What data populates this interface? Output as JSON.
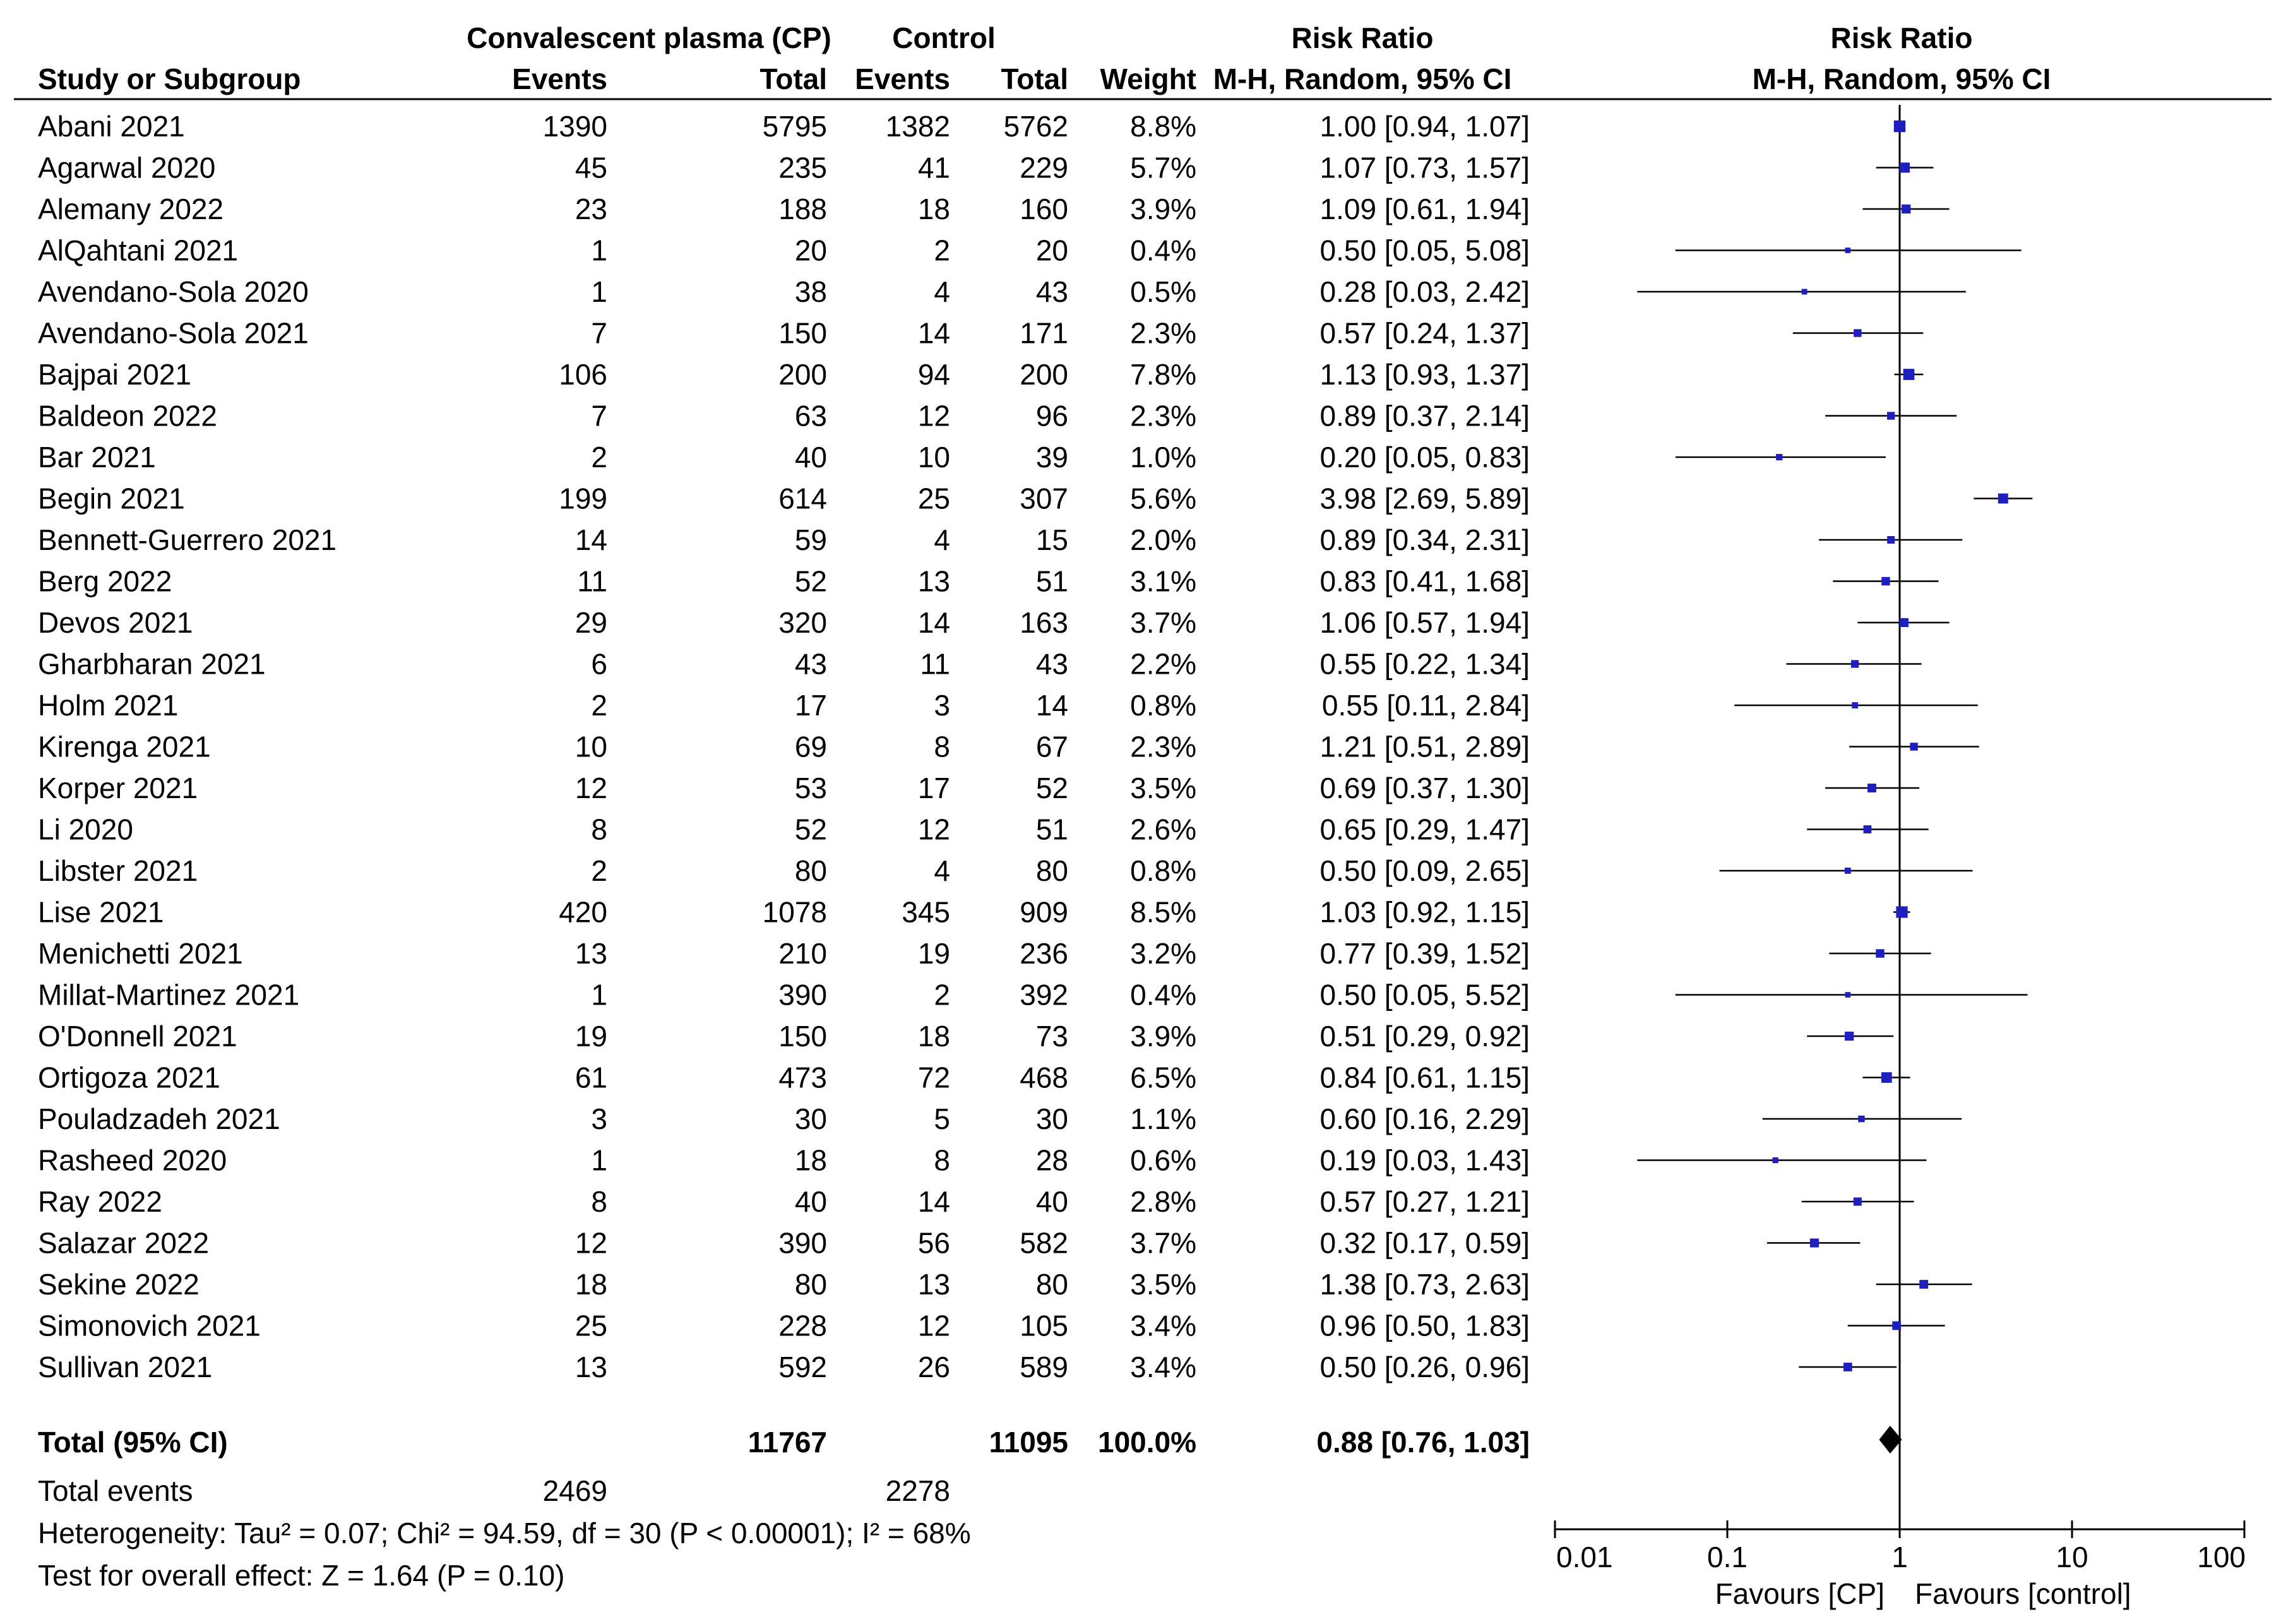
{
  "headers": {
    "group1": "Convalescent plasma (CP)",
    "group2": "Control",
    "rr_top": "Risk Ratio",
    "plot_top": "Risk Ratio",
    "study": "Study or Subgroup",
    "events1": "Events",
    "total1": "Total",
    "events2": "Events",
    "total2": "Total",
    "weight": "Weight",
    "rr_method": "M-H, Random, 95% CI",
    "plot_method": "M-H, Random, 95% CI"
  },
  "studies": [
    {
      "name": "Abani 2021",
      "e1": "1390",
      "n1": "5795",
      "e2": "1382",
      "n2": "5762",
      "w": "8.8%",
      "ci": "1.00 [0.94, 1.07]"
    },
    {
      "name": "Agarwal 2020",
      "e1": "45",
      "n1": "235",
      "e2": "41",
      "n2": "229",
      "w": "5.7%",
      "ci": "1.07 [0.73, 1.57]"
    },
    {
      "name": "Alemany 2022",
      "e1": "23",
      "n1": "188",
      "e2": "18",
      "n2": "160",
      "w": "3.9%",
      "ci": "1.09 [0.61, 1.94]"
    },
    {
      "name": "AlQahtani 2021",
      "e1": "1",
      "n1": "20",
      "e2": "2",
      "n2": "20",
      "w": "0.4%",
      "ci": "0.50 [0.05, 5.08]"
    },
    {
      "name": "Avendano-Sola 2020",
      "e1": "1",
      "n1": "38",
      "e2": "4",
      "n2": "43",
      "w": "0.5%",
      "ci": "0.28 [0.03, 2.42]"
    },
    {
      "name": "Avendano-Sola 2021",
      "e1": "7",
      "n1": "150",
      "e2": "14",
      "n2": "171",
      "w": "2.3%",
      "ci": "0.57 [0.24, 1.37]"
    },
    {
      "name": "Bajpai 2021",
      "e1": "106",
      "n1": "200",
      "e2": "94",
      "n2": "200",
      "w": "7.8%",
      "ci": "1.13 [0.93, 1.37]"
    },
    {
      "name": "Baldeon 2022",
      "e1": "7",
      "n1": "63",
      "e2": "12",
      "n2": "96",
      "w": "2.3%",
      "ci": "0.89 [0.37, 2.14]"
    },
    {
      "name": "Bar 2021",
      "e1": "2",
      "n1": "40",
      "e2": "10",
      "n2": "39",
      "w": "1.0%",
      "ci": "0.20 [0.05, 0.83]"
    },
    {
      "name": "Begin 2021",
      "e1": "199",
      "n1": "614",
      "e2": "25",
      "n2": "307",
      "w": "5.6%",
      "ci": "3.98 [2.69, 5.89]"
    },
    {
      "name": "Bennett-Guerrero 2021",
      "e1": "14",
      "n1": "59",
      "e2": "4",
      "n2": "15",
      "w": "2.0%",
      "ci": "0.89 [0.34, 2.31]"
    },
    {
      "name": "Berg 2022",
      "e1": "11",
      "n1": "52",
      "e2": "13",
      "n2": "51",
      "w": "3.1%",
      "ci": "0.83 [0.41, 1.68]"
    },
    {
      "name": "Devos 2021",
      "e1": "29",
      "n1": "320",
      "e2": "14",
      "n2": "163",
      "w": "3.7%",
      "ci": "1.06 [0.57, 1.94]"
    },
    {
      "name": "Gharbharan 2021",
      "e1": "6",
      "n1": "43",
      "e2": "11",
      "n2": "43",
      "w": "2.2%",
      "ci": "0.55 [0.22, 1.34]"
    },
    {
      "name": "Holm 2021",
      "e1": "2",
      "n1": "17",
      "e2": "3",
      "n2": "14",
      "w": "0.8%",
      "ci": "0.55 [0.11, 2.84]"
    },
    {
      "name": "Kirenga 2021",
      "e1": "10",
      "n1": "69",
      "e2": "8",
      "n2": "67",
      "w": "2.3%",
      "ci": "1.21 [0.51, 2.89]"
    },
    {
      "name": "Korper 2021",
      "e1": "12",
      "n1": "53",
      "e2": "17",
      "n2": "52",
      "w": "3.5%",
      "ci": "0.69 [0.37, 1.30]"
    },
    {
      "name": "Li 2020",
      "e1": "8",
      "n1": "52",
      "e2": "12",
      "n2": "51",
      "w": "2.6%",
      "ci": "0.65 [0.29, 1.47]"
    },
    {
      "name": "Libster 2021",
      "e1": "2",
      "n1": "80",
      "e2": "4",
      "n2": "80",
      "w": "0.8%",
      "ci": "0.50 [0.09, 2.65]"
    },
    {
      "name": "Lise 2021",
      "e1": "420",
      "n1": "1078",
      "e2": "345",
      "n2": "909",
      "w": "8.5%",
      "ci": "1.03 [0.92, 1.15]"
    },
    {
      "name": "Menichetti 2021",
      "e1": "13",
      "n1": "210",
      "e2": "19",
      "n2": "236",
      "w": "3.2%",
      "ci": "0.77 [0.39, 1.52]"
    },
    {
      "name": "Millat-Martinez 2021",
      "e1": "1",
      "n1": "390",
      "e2": "2",
      "n2": "392",
      "w": "0.4%",
      "ci": "0.50 [0.05, 5.52]"
    },
    {
      "name": "O'Donnell 2021",
      "e1": "19",
      "n1": "150",
      "e2": "18",
      "n2": "73",
      "w": "3.9%",
      "ci": "0.51 [0.29, 0.92]"
    },
    {
      "name": "Ortigoza 2021",
      "e1": "61",
      "n1": "473",
      "e2": "72",
      "n2": "468",
      "w": "6.5%",
      "ci": "0.84 [0.61, 1.15]"
    },
    {
      "name": "Pouladzadeh 2021",
      "e1": "3",
      "n1": "30",
      "e2": "5",
      "n2": "30",
      "w": "1.1%",
      "ci": "0.60 [0.16, 2.29]"
    },
    {
      "name": "Rasheed 2020",
      "e1": "1",
      "n1": "18",
      "e2": "8",
      "n2": "28",
      "w": "0.6%",
      "ci": "0.19 [0.03, 1.43]"
    },
    {
      "name": "Ray 2022",
      "e1": "8",
      "n1": "40",
      "e2": "14",
      "n2": "40",
      "w": "2.8%",
      "ci": "0.57 [0.27, 1.21]"
    },
    {
      "name": "Salazar 2022",
      "e1": "12",
      "n1": "390",
      "e2": "56",
      "n2": "582",
      "w": "3.7%",
      "ci": "0.32 [0.17, 0.59]"
    },
    {
      "name": "Sekine 2022",
      "e1": "18",
      "n1": "80",
      "e2": "13",
      "n2": "80",
      "w": "3.5%",
      "ci": "1.38 [0.73, 2.63]"
    },
    {
      "name": "Simonovich 2021",
      "e1": "25",
      "n1": "228",
      "e2": "12",
      "n2": "105",
      "w": "3.4%",
      "ci": "0.96 [0.50, 1.83]"
    },
    {
      "name": "Sullivan 2021",
      "e1": "13",
      "n1": "592",
      "e2": "26",
      "n2": "589",
      "w": "3.4%",
      "ci": "0.50 [0.26, 0.96]"
    }
  ],
  "total": {
    "label": "Total (95% CI)",
    "n1": "11767",
    "n2": "11095",
    "w": "100.0%",
    "ci": "0.88 [0.76, 1.03]"
  },
  "total_events": {
    "label": "Total events",
    "e1": "2469",
    "e2": "2278"
  },
  "heterogeneity": "Heterogeneity: Tau² = 0.07; Chi² = 94.59, df = 30 (P < 0.00001); I² = 68%",
  "overall_effect": "Test for overall effect: Z = 1.64 (P = 0.10)",
  "axis": {
    "scale": "log",
    "range": [
      0.01,
      100
    ],
    "ticks": [
      {
        "value": 0.01,
        "label": "0.01"
      },
      {
        "value": 0.1,
        "label": "0.1"
      },
      {
        "value": 1,
        "label": "1"
      },
      {
        "value": 10,
        "label": "10"
      },
      {
        "value": 100,
        "label": "100"
      }
    ],
    "favours_left": "Favours [CP]",
    "favours_right": "Favours [control]"
  },
  "colors": {
    "square": "#1f1fbf",
    "line": "#000000",
    "diamond": "#000000"
  },
  "chart_data": {
    "type": "forest",
    "x_scale": "log",
    "xlim": [
      0.01,
      100
    ],
    "reference_line": 1,
    "points": [
      {
        "study": "Abani 2021",
        "rr": 1.0,
        "lo": 0.94,
        "hi": 1.07,
        "weight": 8.8
      },
      {
        "study": "Agarwal 2020",
        "rr": 1.07,
        "lo": 0.73,
        "hi": 1.57,
        "weight": 5.7
      },
      {
        "study": "Alemany 2022",
        "rr": 1.09,
        "lo": 0.61,
        "hi": 1.94,
        "weight": 3.9
      },
      {
        "study": "AlQahtani 2021",
        "rr": 0.5,
        "lo": 0.05,
        "hi": 5.08,
        "weight": 0.4
      },
      {
        "study": "Avendano-Sola 2020",
        "rr": 0.28,
        "lo": 0.03,
        "hi": 2.42,
        "weight": 0.5
      },
      {
        "study": "Avendano-Sola 2021",
        "rr": 0.57,
        "lo": 0.24,
        "hi": 1.37,
        "weight": 2.3
      },
      {
        "study": "Bajpai 2021",
        "rr": 1.13,
        "lo": 0.93,
        "hi": 1.37,
        "weight": 7.8
      },
      {
        "study": "Baldeon 2022",
        "rr": 0.89,
        "lo": 0.37,
        "hi": 2.14,
        "weight": 2.3
      },
      {
        "study": "Bar 2021",
        "rr": 0.2,
        "lo": 0.05,
        "hi": 0.83,
        "weight": 1.0
      },
      {
        "study": "Begin 2021",
        "rr": 3.98,
        "lo": 2.69,
        "hi": 5.89,
        "weight": 5.6
      },
      {
        "study": "Bennett-Guerrero 2021",
        "rr": 0.89,
        "lo": 0.34,
        "hi": 2.31,
        "weight": 2.0
      },
      {
        "study": "Berg 2022",
        "rr": 0.83,
        "lo": 0.41,
        "hi": 1.68,
        "weight": 3.1
      },
      {
        "study": "Devos 2021",
        "rr": 1.06,
        "lo": 0.57,
        "hi": 1.94,
        "weight": 3.7
      },
      {
        "study": "Gharbharan 2021",
        "rr": 0.55,
        "lo": 0.22,
        "hi": 1.34,
        "weight": 2.2
      },
      {
        "study": "Holm 2021",
        "rr": 0.55,
        "lo": 0.11,
        "hi": 2.84,
        "weight": 0.8
      },
      {
        "study": "Kirenga 2021",
        "rr": 1.21,
        "lo": 0.51,
        "hi": 2.89,
        "weight": 2.3
      },
      {
        "study": "Korper 2021",
        "rr": 0.69,
        "lo": 0.37,
        "hi": 1.3,
        "weight": 3.5
      },
      {
        "study": "Li 2020",
        "rr": 0.65,
        "lo": 0.29,
        "hi": 1.47,
        "weight": 2.6
      },
      {
        "study": "Libster 2021",
        "rr": 0.5,
        "lo": 0.09,
        "hi": 2.65,
        "weight": 0.8
      },
      {
        "study": "Lise 2021",
        "rr": 1.03,
        "lo": 0.92,
        "hi": 1.15,
        "weight": 8.5
      },
      {
        "study": "Menichetti 2021",
        "rr": 0.77,
        "lo": 0.39,
        "hi": 1.52,
        "weight": 3.2
      },
      {
        "study": "Millat-Martinez 2021",
        "rr": 0.5,
        "lo": 0.05,
        "hi": 5.52,
        "weight": 0.4
      },
      {
        "study": "O'Donnell 2021",
        "rr": 0.51,
        "lo": 0.29,
        "hi": 0.92,
        "weight": 3.9
      },
      {
        "study": "Ortigoza 2021",
        "rr": 0.84,
        "lo": 0.61,
        "hi": 1.15,
        "weight": 6.5
      },
      {
        "study": "Pouladzadeh 2021",
        "rr": 0.6,
        "lo": 0.16,
        "hi": 2.29,
        "weight": 1.1
      },
      {
        "study": "Rasheed 2020",
        "rr": 0.19,
        "lo": 0.03,
        "hi": 1.43,
        "weight": 0.6
      },
      {
        "study": "Ray 2022",
        "rr": 0.57,
        "lo": 0.27,
        "hi": 1.21,
        "weight": 2.8
      },
      {
        "study": "Salazar 2022",
        "rr": 0.32,
        "lo": 0.17,
        "hi": 0.59,
        "weight": 3.7
      },
      {
        "study": "Sekine 2022",
        "rr": 1.38,
        "lo": 0.73,
        "hi": 2.63,
        "weight": 3.5
      },
      {
        "study": "Simonovich 2021",
        "rr": 0.96,
        "lo": 0.5,
        "hi": 1.83,
        "weight": 3.4
      },
      {
        "study": "Sullivan 2021",
        "rr": 0.5,
        "lo": 0.26,
        "hi": 0.96,
        "weight": 3.4
      }
    ],
    "pooled": {
      "rr": 0.88,
      "lo": 0.76,
      "hi": 1.03
    }
  }
}
